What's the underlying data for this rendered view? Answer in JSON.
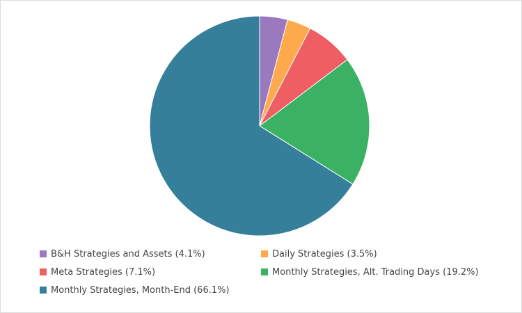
{
  "chart_data": {
    "type": "pie",
    "slices": [
      {
        "label": "B&H Strategies and Assets",
        "value": 4.1,
        "color": "#9b79bf",
        "legend": "B&H Strategies and Assets (4.1%)"
      },
      {
        "label": "Daily Strategies",
        "value": 3.5,
        "color": "#ffa94d",
        "legend": "Daily Strategies (3.5%)"
      },
      {
        "label": "Meta Strategies",
        "value": 7.1,
        "color": "#ee5e62",
        "legend": "Meta Strategies (7.1%)"
      },
      {
        "label": "Monthly Strategies, Alt. Trading Days",
        "value": 19.2,
        "color": "#3bb163",
        "legend": "Monthly Strategies, Alt. Trading Days (19.2%)"
      },
      {
        "label": "Monthly Strategies, Month-End",
        "value": 66.1,
        "color": "#367f9a",
        "legend": "Monthly Strategies, Month-End (66.1%)"
      }
    ],
    "legend_position": "bottom",
    "start_angle": "top",
    "direction": "clockwise"
  }
}
